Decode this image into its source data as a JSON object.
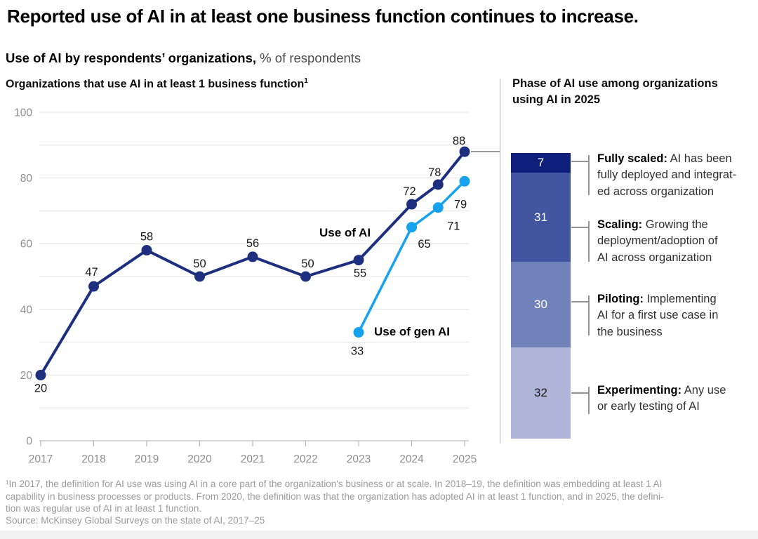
{
  "header": {
    "title": "Reported use of AI in at least one business function continues to increase.",
    "subtitle_bold": "Use of AI by respondents’ organizations,",
    "subtitle_rest": " % of respondents"
  },
  "left_chart": {
    "heading": "Organizations that use AI in at least 1 business function",
    "heading_superscript": "1"
  },
  "chart_data": [
    {
      "type": "line",
      "title": "Organizations that use AI in at least 1 business function (% of respondents)",
      "x_ticks": [
        2017,
        2018,
        2019,
        2020,
        2021,
        2022,
        2023,
        2024,
        2025
      ],
      "y_ticks": [
        0,
        20,
        40,
        60,
        80,
        100
      ],
      "ylim": [
        0,
        100
      ],
      "grid": "horizontal gridlines every 10 units",
      "legend_position": "inline labels on chart",
      "series": [
        {
          "name": "Use of AI",
          "color": "#1e2f80",
          "x": [
            2017,
            2018,
            2019,
            2020,
            2021,
            2022,
            2023,
            2024,
            2024.5,
            2025
          ],
          "values": [
            20,
            47,
            58,
            50,
            56,
            50,
            55,
            72,
            78,
            88
          ]
        },
        {
          "name": "Use of gen AI",
          "color": "#16a2ee",
          "x": [
            2023,
            2024,
            2024.5,
            2025
          ],
          "values": [
            33,
            65,
            71,
            79
          ]
        }
      ]
    },
    {
      "type": "bar",
      "stacked": true,
      "title": "Phase of AI use among organizations using AI in 2025",
      "categories": [
        "Fully scaled",
        "Scaling",
        "Piloting",
        "Experimenting"
      ],
      "values": [
        7,
        31,
        30,
        32
      ],
      "colors": [
        "#101f7b",
        "#4355a0",
        "#7181ba",
        "#aeb5d9"
      ]
    }
  ],
  "phase_panel": {
    "heading": "Phase of AI use among organizations\nusing AI in 2025",
    "segments": [
      {
        "value": 7,
        "color": "#101f7b",
        "value_color": "#ffffff",
        "term": "Fully scaled:",
        "desc": " AI has been\nfully deployed and integrat-\ned across organization"
      },
      {
        "value": 31,
        "color": "#4355a0",
        "value_color": "#ffffff",
        "term": "Scaling:",
        "desc": " Growing the\ndeployment/adoption of\nAI across organization"
      },
      {
        "value": 30,
        "color": "#7181ba",
        "value_color": "#ffffff",
        "term": "Piloting:",
        "desc": " Implementing\nAI for a first use case in\nthe business"
      },
      {
        "value": 32,
        "color": "#aeb5d9",
        "value_color": "#1a1a1a",
        "term": "Experimenting:",
        "desc": " Any use\nor early testing of AI"
      }
    ]
  },
  "footnote": {
    "note": "¹In 2017, the definition for AI use was using AI in a core part of the organization's business or at scale. In 2018–19, the definition was embedding at least 1 AI\n capability in business processes or products. From 2020, the definition was that the organization has adopted AI in at least 1 function, and in 2025, the defini-\ntion was regular use of AI in at least 1 function.",
    "source": "Source: McKinsey Global Surveys on the state of AI, 2017–25"
  },
  "styles": {
    "grid_color": "#e4e4e4",
    "axis_color": "#bdbdbd",
    "axis_label_color": "#8e8e8e",
    "data_label_color": "#1a1a1a",
    "connector_color": "#999999"
  }
}
